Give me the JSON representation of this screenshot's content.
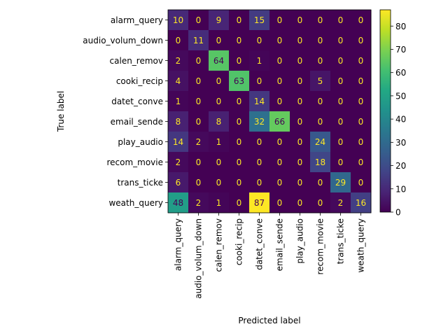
{
  "chart_data": {
    "type": "heatmap",
    "title": "",
    "xlabel": "Predicted label",
    "ylabel": "True label",
    "categories": [
      "alarm_query",
      "audio_volum_down",
      "calen_remov",
      "cooki_recip",
      "datet_conve",
      "email_sende",
      "play_audio",
      "recom_movie",
      "trans_ticke",
      "weath_query"
    ],
    "values": [
      [
        10,
        0,
        9,
        0,
        15,
        0,
        0,
        0,
        0,
        0
      ],
      [
        0,
        11,
        0,
        0,
        0,
        0,
        0,
        0,
        0,
        0
      ],
      [
        2,
        0,
        64,
        0,
        1,
        0,
        0,
        0,
        0,
        0
      ],
      [
        4,
        0,
        0,
        63,
        0,
        0,
        0,
        5,
        0,
        0
      ],
      [
        1,
        0,
        0,
        0,
        14,
        0,
        0,
        0,
        0,
        0
      ],
      [
        8,
        0,
        8,
        0,
        32,
        66,
        0,
        0,
        0,
        0
      ],
      [
        14,
        2,
        1,
        0,
        0,
        0,
        0,
        24,
        0,
        0
      ],
      [
        2,
        0,
        0,
        0,
        0,
        0,
        0,
        18,
        0,
        0
      ],
      [
        6,
        0,
        0,
        0,
        0,
        0,
        0,
        0,
        29,
        0
      ],
      [
        48,
        2,
        1,
        0,
        87,
        0,
        0,
        0,
        2,
        16
      ]
    ],
    "value_range": [
      0,
      87
    ],
    "colorbar_ticks": [
      0,
      10,
      20,
      30,
      40,
      50,
      60,
      70,
      80
    ],
    "colormap": "viridis",
    "low_text_color": "#fde725",
    "high_text_color": "#440154"
  }
}
